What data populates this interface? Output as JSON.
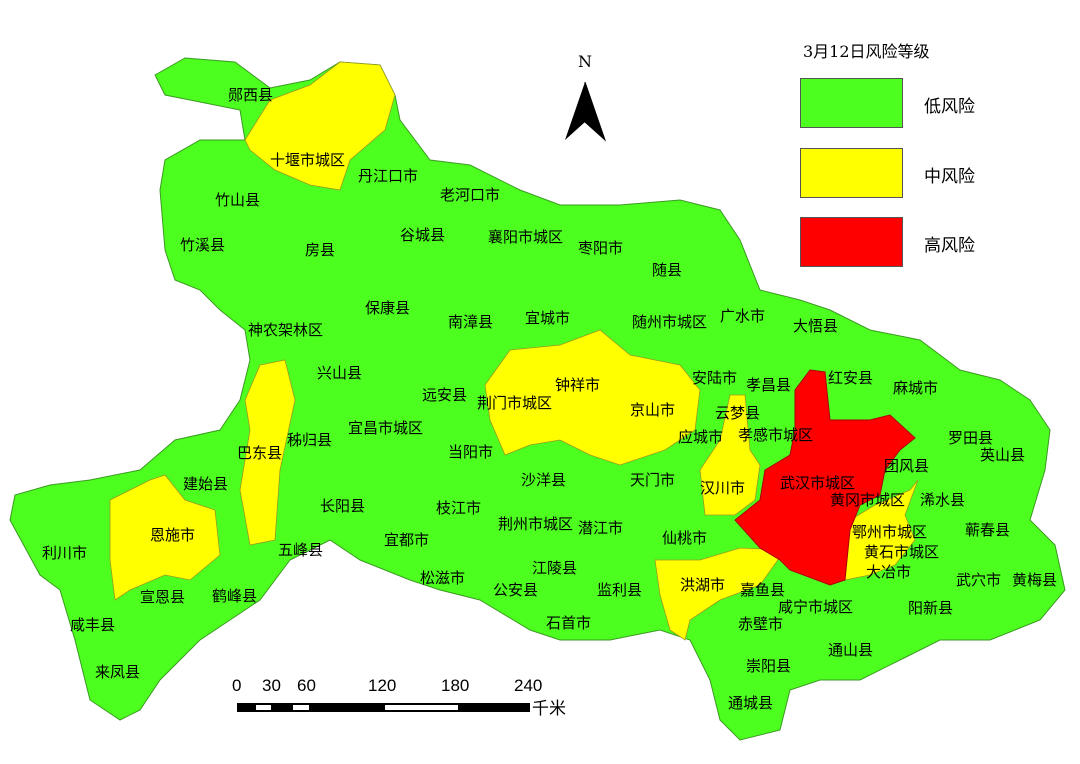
{
  "legend": {
    "title": "3月12日风险等级",
    "items": [
      {
        "label": "低风险",
        "color": "#4CFF1F"
      },
      {
        "label": "中风险",
        "color": "#FFFF00"
      },
      {
        "label": "高风险",
        "color": "#FF0000"
      }
    ]
  },
  "north_arrow": {
    "label": "N"
  },
  "scale_bar": {
    "ticks": [
      "0",
      "30",
      "60",
      "120",
      "180",
      "240"
    ],
    "unit": "千米"
  },
  "colors": {
    "low": "#4CFF1F",
    "medium": "#FFFF00",
    "high": "#FF0000",
    "border": "#3a9a20"
  },
  "regions": {
    "high_risk": [
      "武汉市城区"
    ],
    "medium_risk": [
      "十堰市城区",
      "荆门市城区",
      "钟祥市",
      "京山市",
      "巴东县",
      "恩施市",
      "云梦县",
      "汉川市",
      "洪湖市",
      "鄂州市城区",
      "黄石市城区",
      "黄冈市城区"
    ]
  },
  "labels": [
    "郧西县",
    "十堰市城区",
    "丹江口市",
    "老河口市",
    "竹山县",
    "竹溪县",
    "房县",
    "谷城县",
    "襄阳市城区",
    "枣阳市",
    "随县",
    "保康县",
    "神农架林区",
    "南漳县",
    "宜城市",
    "随州市城区",
    "广水市",
    "大悟县",
    "兴山县",
    "远安县",
    "钟祥市",
    "荆门市城区",
    "京山市",
    "安陆市",
    "孝昌县",
    "红安县",
    "麻城市",
    "云梦县",
    "应城市",
    "孝感市城区",
    "巴东县",
    "秭归县",
    "宜昌市城区",
    "当阳市",
    "罗田县",
    "英山县",
    "沙洋县",
    "天门市",
    "汉川市",
    "武汉市城区",
    "团风县",
    "建始县",
    "黄冈市城区",
    "浠水县",
    "长阳县",
    "枝江市",
    "荆州市城区",
    "潜江市",
    "仙桃市",
    "鄂州市城区",
    "蕲春县",
    "利川市",
    "恩施市",
    "五峰县",
    "宜都市",
    "黄石市城区",
    "大冶市",
    "江陵县",
    "松滋市",
    "公安县",
    "监利县",
    "洪湖市",
    "嘉鱼县",
    "武穴市",
    "黄梅县",
    "宣恩县",
    "鹤峰县",
    "咸宁市城区",
    "阳新县",
    "石首市",
    "赤壁市",
    "咸丰县",
    "通山县",
    "崇阳县",
    "来凤县",
    "通城县"
  ]
}
